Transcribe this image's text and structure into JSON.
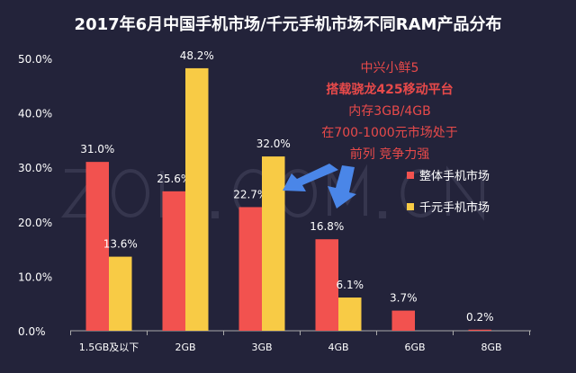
{
  "chart_data": {
    "type": "bar",
    "title": "2017年6月中国手机市场/千元手机市场不同RAM产品分布",
    "categories": [
      "1.5GB及以下",
      "2GB",
      "3GB",
      "4GB",
      "6GB",
      "8GB"
    ],
    "series": [
      {
        "name": "整体手机市场",
        "color": "#f2524f",
        "values": [
          31.0,
          25.6,
          22.7,
          16.8,
          3.7,
          0.2
        ]
      },
      {
        "name": "千元手机市场",
        "color": "#f8cb45",
        "values": [
          13.6,
          48.2,
          32.0,
          6.1,
          null,
          null
        ]
      }
    ],
    "yticks": [
      "0.0%",
      "10.0%",
      "20.0%",
      "30.0%",
      "40.0%",
      "50.0%"
    ],
    "ylim": [
      0,
      50
    ],
    "legend": "right",
    "watermark": "ZOL.COM.CN",
    "annotation": [
      "中兴小鲜5",
      "搭载骁龙425移动平台",
      "内存3GB/4GB",
      "在700-1000元市场处于",
      "前列 竞争力强"
    ],
    "annotation_color": "#e84a4a",
    "arrow_color": "#4a86e8"
  }
}
